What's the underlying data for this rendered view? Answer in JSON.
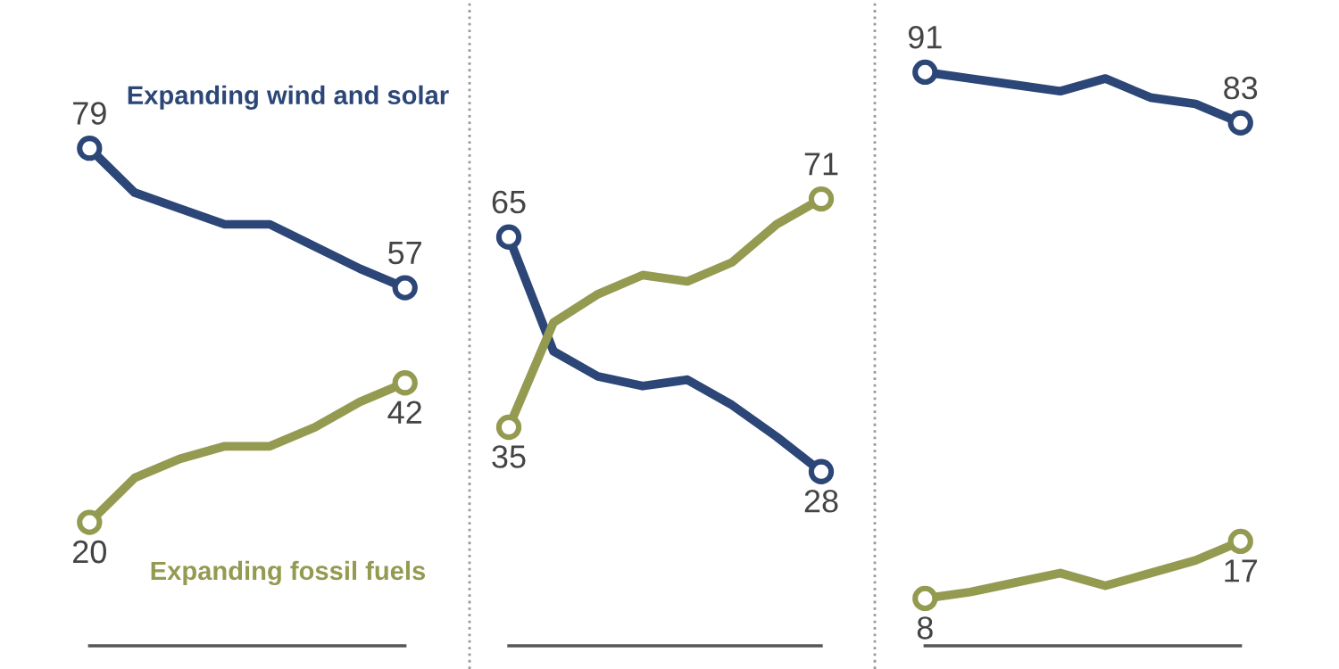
{
  "chart_data": [
    {
      "type": "line",
      "categories": [
        null,
        null,
        null,
        null,
        null,
        null,
        null,
        null
      ],
      "grid": false,
      "legend": false,
      "series": [
        {
          "name": "Expanding wind and solar",
          "color": "#2b4677",
          "values": [
            79,
            72,
            69.5,
            67,
            67,
            63.5,
            60,
            57
          ],
          "value_labels": [
            "79",
            null,
            null,
            null,
            null,
            null,
            null,
            "57"
          ]
        },
        {
          "name": "Expanding fossil fuels",
          "color": "#949a50",
          "values": [
            20,
            27,
            30,
            32,
            32,
            35,
            39,
            42
          ],
          "value_labels": [
            "20",
            null,
            null,
            null,
            null,
            null,
            null,
            "42"
          ]
        }
      ]
    },
    {
      "type": "line",
      "categories": [
        null,
        null,
        null,
        null,
        null,
        null,
        null,
        null
      ],
      "grid": false,
      "legend": false,
      "series": [
        {
          "color": "#2b4677",
          "values": [
            65,
            47,
            43,
            41.5,
            42.5,
            38.5,
            33.5,
            28
          ],
          "value_labels": [
            "65",
            null,
            null,
            null,
            null,
            null,
            null,
            "28"
          ]
        },
        {
          "color": "#949a50",
          "values": [
            35,
            51.5,
            56,
            59,
            58,
            61,
            67,
            71
          ],
          "value_labels": [
            "35",
            null,
            null,
            null,
            null,
            null,
            null,
            "71"
          ]
        }
      ]
    },
    {
      "type": "line",
      "categories": [
        null,
        null,
        null,
        null,
        null,
        null,
        null,
        null
      ],
      "grid": false,
      "legend": false,
      "series": [
        {
          "color": "#2b4677",
          "values": [
            91,
            90,
            89,
            88,
            90,
            87,
            86,
            83
          ],
          "value_labels": [
            "91",
            null,
            null,
            null,
            null,
            null,
            null,
            "83"
          ]
        },
        {
          "color": "#949a50",
          "values": [
            8,
            9,
            10.5,
            12,
            10,
            12,
            14,
            17
          ],
          "value_labels": [
            "8",
            null,
            null,
            null,
            null,
            null,
            null,
            "17"
          ]
        }
      ]
    }
  ]
}
